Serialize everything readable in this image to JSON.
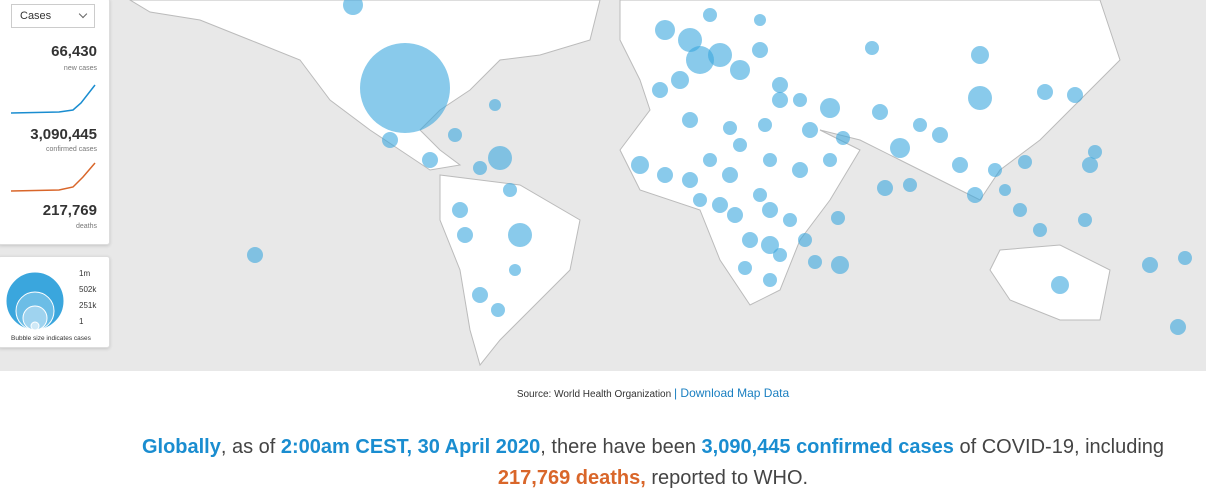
{
  "panel": {
    "dropdown": "Cases",
    "stats": [
      {
        "value": "66,430",
        "label": "new cases"
      },
      {
        "value": "3,090,445",
        "label": "confirmed cases"
      },
      {
        "value": "217,769",
        "label": "deaths"
      }
    ]
  },
  "legend": {
    "sizes": [
      "1m",
      "502k",
      "251k",
      "1"
    ],
    "caption": "Bubble size indicates cases"
  },
  "source": {
    "label": "Source:",
    "name": "World Health Organization",
    "link": "| Download Map Data"
  },
  "summary": [
    {
      "text": "Globally",
      "accent": "#1a8dd0"
    },
    {
      "text": ", as of "
    },
    {
      "text": "2:00am CEST, 30 April 2020",
      "accent": "#1a8dd0"
    },
    {
      "text": ", there have been "
    },
    {
      "text": "3,090,445 confirmed cases",
      "accent": "#1a8dd0"
    },
    {
      "text": " of COVID-19, including "
    },
    {
      "text": "217,769 deaths,",
      "accent": "#d9662a"
    },
    {
      "text": " reported to WHO."
    }
  ]
}
